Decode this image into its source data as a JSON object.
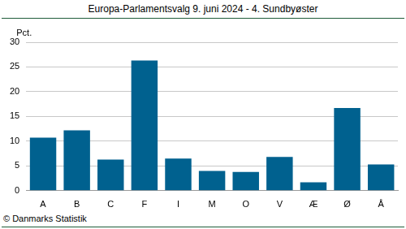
{
  "chart_data": {
    "type": "bar",
    "title": "Europa-Parlamentsvalg 9. juni 2024 - 4. Sundbyøster",
    "y_label": "Pct.",
    "footer": "© Danmarks Statistik",
    "categories": [
      "A",
      "B",
      "C",
      "F",
      "I",
      "M",
      "O",
      "V",
      "Æ",
      "Ø",
      "Å"
    ],
    "values": [
      10.7,
      12.2,
      6.3,
      26.3,
      6.5,
      4.0,
      3.8,
      6.8,
      1.7,
      16.7,
      5.3
    ],
    "color": "#00618f",
    "ylim": [
      0,
      30
    ],
    "yticks": [
      0,
      5,
      10,
      15,
      20,
      25,
      30
    ],
    "grid": true
  }
}
